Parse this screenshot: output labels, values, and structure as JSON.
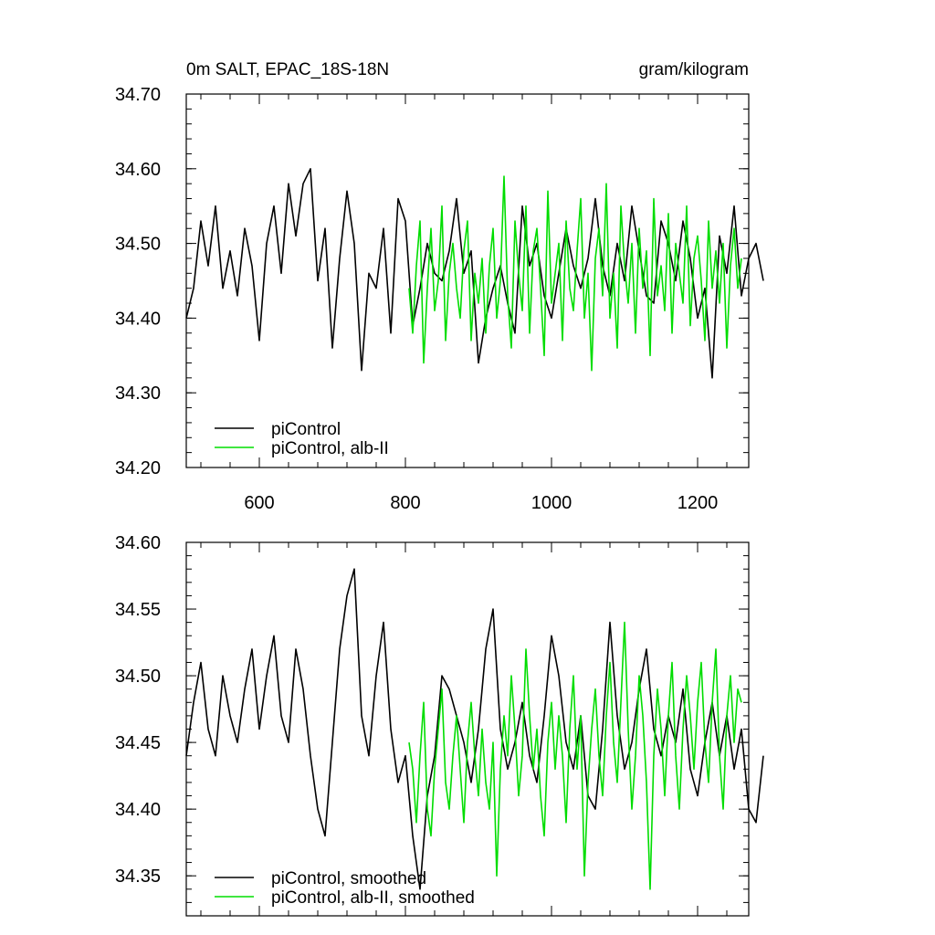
{
  "chart_data": [
    {
      "type": "line",
      "title": "0m SALT, EPAC_18S-18N",
      "units": "gram/kilogram",
      "xlim": [
        500,
        1270
      ],
      "ylim": [
        34.2,
        34.7
      ],
      "xticks": [
        600,
        800,
        1000,
        1200
      ],
      "xtick_labels": [
        "600",
        "800",
        "1000",
        "1200"
      ],
      "yticks": [
        34.2,
        34.3,
        34.4,
        34.5,
        34.6,
        34.7
      ],
      "ytick_labels": [
        "34.20",
        "34.30",
        "34.40",
        "34.50",
        "34.60",
        "34.70"
      ],
      "grid": false,
      "legend_position": "bottom-left",
      "series": [
        {
          "name": "piControl",
          "color": "#000000",
          "x_start": 500,
          "x_step": 10,
          "values": [
            34.4,
            34.44,
            34.53,
            34.47,
            34.55,
            34.44,
            34.49,
            34.43,
            34.52,
            34.47,
            34.37,
            34.5,
            34.55,
            34.46,
            34.58,
            34.51,
            34.58,
            34.6,
            34.45,
            34.52,
            34.36,
            34.48,
            34.57,
            34.5,
            34.33,
            34.46,
            34.44,
            34.52,
            34.38,
            34.56,
            34.53,
            34.39,
            34.44,
            34.5,
            34.46,
            34.45,
            34.49,
            34.56,
            34.46,
            34.49,
            34.34,
            34.4,
            34.44,
            34.47,
            34.42,
            34.38,
            34.55,
            34.47,
            34.5,
            34.43,
            34.4,
            34.46,
            34.52,
            34.47,
            34.44,
            34.48,
            34.56,
            34.47,
            34.43,
            34.5,
            34.45,
            34.55,
            34.49,
            34.43,
            34.42,
            34.53,
            34.5,
            34.45,
            34.53,
            34.48,
            34.4,
            34.44,
            34.32,
            34.51,
            34.46,
            34.55,
            34.43,
            34.48,
            34.5,
            34.45
          ]
        },
        {
          "name": "piControl, alb-II",
          "color": "#00dd00",
          "x_start": 805,
          "x_step": 5,
          "values": [
            34.44,
            34.38,
            34.47,
            34.53,
            34.34,
            34.44,
            34.52,
            34.41,
            34.45,
            34.55,
            34.37,
            34.46,
            34.5,
            34.44,
            34.4,
            34.49,
            34.53,
            34.37,
            34.46,
            34.42,
            34.48,
            34.38,
            34.47,
            34.52,
            34.4,
            34.45,
            34.59,
            34.43,
            34.36,
            34.53,
            34.46,
            34.41,
            34.55,
            34.38,
            34.49,
            34.52,
            34.44,
            34.35,
            34.57,
            34.42,
            34.46,
            34.5,
            34.37,
            34.53,
            34.44,
            34.41,
            34.49,
            34.56,
            34.4,
            34.46,
            34.33,
            34.48,
            34.52,
            34.43,
            34.58,
            34.4,
            34.46,
            34.36,
            34.55,
            34.47,
            34.42,
            34.5,
            34.38,
            34.52,
            34.44,
            34.49,
            34.35,
            34.56,
            34.43,
            34.47,
            34.41,
            34.54,
            34.38,
            34.5,
            34.46,
            34.42,
            34.55,
            34.39,
            34.48,
            34.51,
            34.45,
            34.37,
            34.53,
            34.44,
            34.49,
            34.42,
            34.5,
            34.36,
            34.47,
            34.52,
            34.44,
            34.48
          ]
        }
      ]
    },
    {
      "type": "line",
      "title": "",
      "xlim": [
        500,
        1270
      ],
      "ylim": [
        34.32,
        34.6
      ],
      "xticks": [
        600,
        800,
        1000,
        1200
      ],
      "xtick_labels": [
        "",
        "",
        "",
        ""
      ],
      "yticks": [
        34.35,
        34.4,
        34.45,
        34.5,
        34.55,
        34.6
      ],
      "ytick_labels": [
        "34.35",
        "34.40",
        "34.45",
        "34.50",
        "34.55",
        "34.60"
      ],
      "grid": false,
      "legend_position": "bottom-left",
      "series": [
        {
          "name": "piControl, smoothed",
          "color": "#000000",
          "x_start": 500,
          "x_step": 10,
          "values": [
            34.44,
            34.48,
            34.51,
            34.46,
            34.44,
            34.5,
            34.47,
            34.45,
            34.49,
            34.52,
            34.46,
            34.5,
            34.53,
            34.47,
            34.45,
            34.52,
            34.49,
            34.44,
            34.4,
            34.38,
            34.45,
            34.52,
            34.56,
            34.58,
            34.47,
            34.44,
            34.5,
            34.54,
            34.46,
            34.42,
            34.44,
            34.38,
            34.34,
            34.41,
            34.44,
            34.5,
            34.49,
            34.47,
            34.45,
            34.42,
            34.46,
            34.52,
            34.55,
            34.46,
            34.43,
            34.45,
            34.48,
            34.44,
            34.42,
            34.47,
            34.53,
            34.5,
            34.45,
            34.43,
            34.47,
            34.41,
            34.4,
            34.46,
            34.54,
            34.47,
            34.43,
            34.45,
            34.49,
            34.52,
            34.46,
            34.44,
            34.47,
            34.45,
            34.49,
            34.43,
            34.41,
            34.45,
            34.48,
            34.44,
            34.47,
            34.43,
            34.46,
            34.4,
            34.39,
            34.44
          ]
        },
        {
          "name": "piControl, alb-II, smoothed",
          "color": "#00dd00",
          "x_start": 805,
          "x_step": 5,
          "values": [
            34.45,
            34.43,
            34.39,
            34.44,
            34.48,
            34.4,
            34.38,
            34.43,
            34.46,
            34.49,
            34.42,
            34.4,
            34.44,
            34.47,
            34.43,
            34.39,
            34.45,
            34.48,
            34.44,
            34.41,
            34.46,
            34.42,
            34.4,
            34.45,
            34.35,
            34.43,
            34.47,
            34.44,
            34.5,
            34.46,
            34.41,
            34.44,
            34.52,
            34.47,
            34.43,
            34.46,
            34.41,
            34.38,
            34.45,
            34.48,
            34.43,
            34.47,
            34.44,
            34.39,
            34.46,
            34.5,
            34.43,
            34.47,
            34.35,
            34.42,
            34.46,
            34.49,
            34.44,
            34.41,
            34.47,
            34.51,
            34.45,
            34.42,
            34.48,
            34.54,
            34.46,
            34.4,
            34.44,
            34.5,
            34.47,
            34.42,
            34.34,
            34.44,
            34.49,
            34.46,
            34.41,
            34.47,
            34.51,
            34.44,
            34.4,
            34.46,
            34.5,
            34.47,
            34.43,
            34.48,
            34.51,
            34.45,
            34.42,
            34.48,
            34.52,
            34.44,
            34.4,
            34.47,
            34.5,
            34.45,
            34.49,
            34.48
          ]
        }
      ]
    }
  ]
}
